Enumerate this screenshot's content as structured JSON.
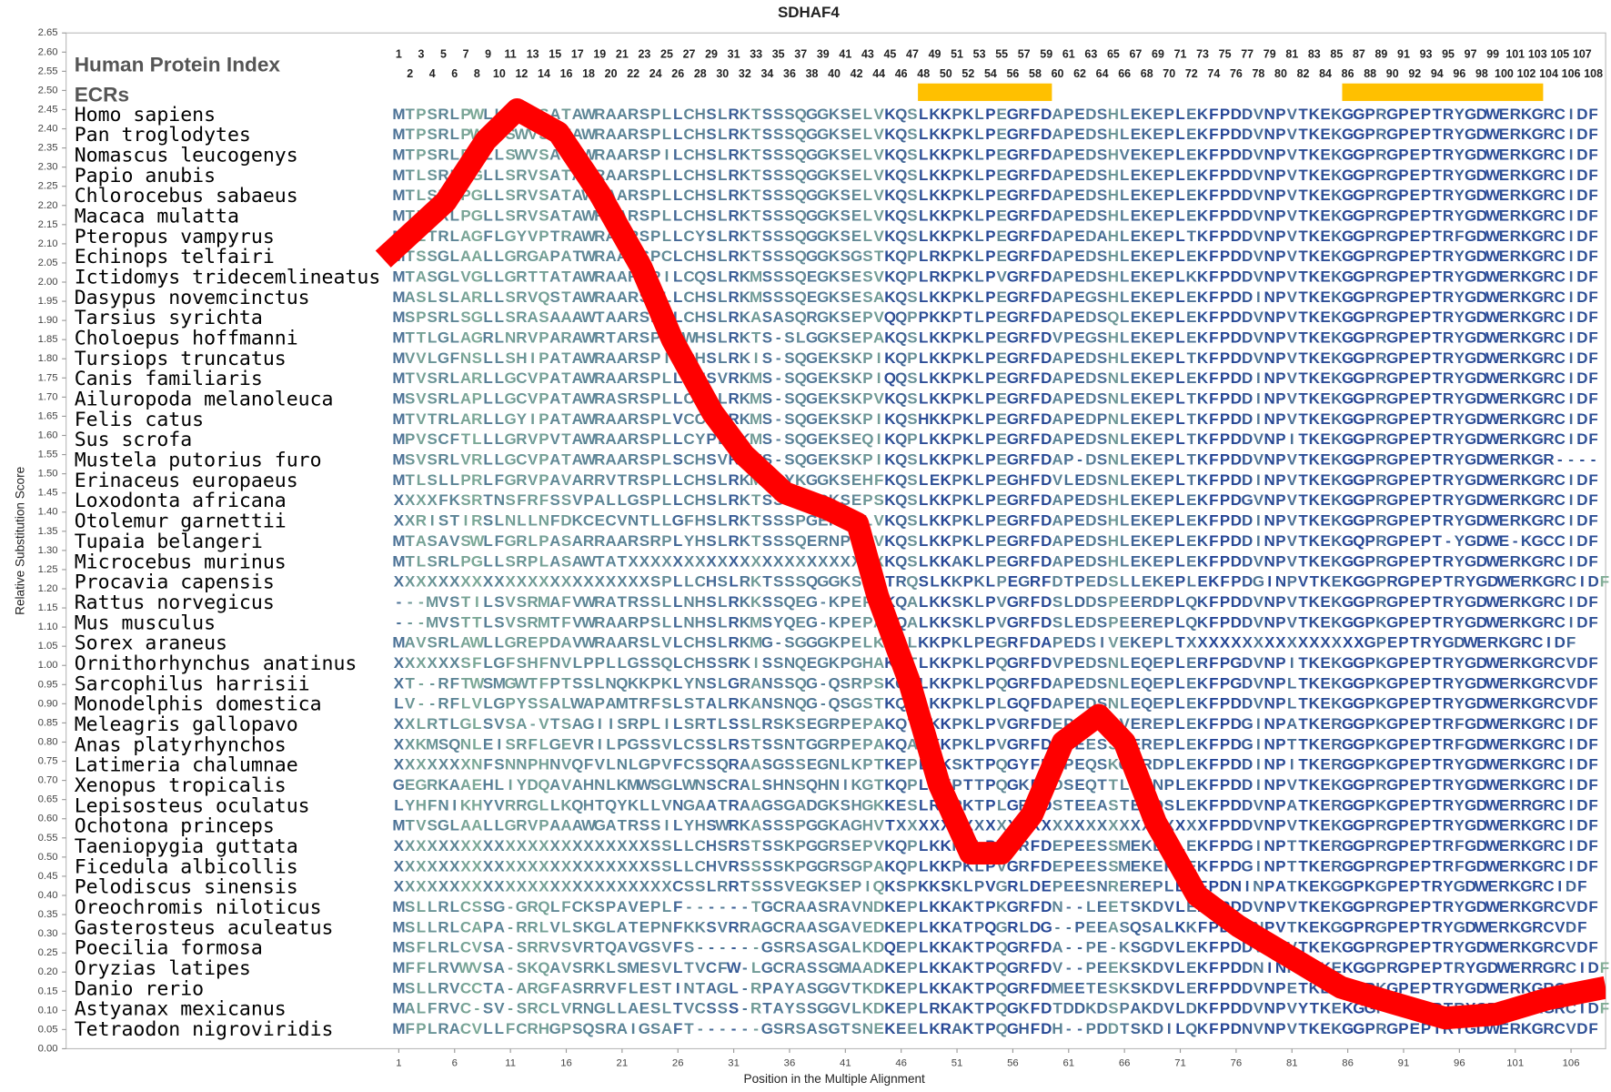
{
  "chart_data": {
    "type": "line",
    "title": "SDHAF4",
    "x_label": "Position in the Multiple Alignment",
    "y_label": "Relative Substitution Score",
    "xlim": [
      -28.8,
      109.1
    ],
    "ylim": [
      0,
      2.65
    ],
    "xticks": [
      1,
      6,
      11,
      16,
      21,
      26,
      31,
      36,
      41,
      46,
      51,
      56,
      61,
      66,
      71,
      76,
      81,
      86,
      91,
      96,
      101,
      106
    ],
    "yticks": [
      {
        "value": 0,
        "label": "0.00"
      },
      {
        "value": 0.05,
        "label": "0.05"
      },
      {
        "value": 0.1,
        "label": "0.10"
      },
      {
        "value": 0.15,
        "label": "0.15"
      },
      {
        "value": 0.2,
        "label": "0.20"
      },
      {
        "value": 0.25,
        "label": "0.25"
      },
      {
        "value": 0.3,
        "label": "0.30"
      },
      {
        "value": 0.35,
        "label": "0.35"
      },
      {
        "value": 0.4,
        "label": "0.40"
      },
      {
        "value": 0.45,
        "label": "0.45"
      },
      {
        "value": 0.5,
        "label": "0.50"
      },
      {
        "value": 0.55,
        "label": "0.55"
      },
      {
        "value": 0.6,
        "label": "0.60"
      },
      {
        "value": 0.65,
        "label": "0.65"
      },
      {
        "value": 0.7,
        "label": "0.70"
      },
      {
        "value": 0.75,
        "label": "0.75"
      },
      {
        "value": 0.8,
        "label": "0.80"
      },
      {
        "value": 0.85,
        "label": "0.85"
      },
      {
        "value": 0.9,
        "label": "0.90"
      },
      {
        "value": 0.95,
        "label": "0.95"
      },
      {
        "value": 1,
        "label": "1.00"
      },
      {
        "value": 1.05,
        "label": "1.05"
      },
      {
        "value": 1.1,
        "label": "1.10"
      },
      {
        "value": 1.15,
        "label": "1.15"
      },
      {
        "value": 1.2,
        "label": "1.20"
      },
      {
        "value": 1.25,
        "label": "1.25"
      },
      {
        "value": 1.3,
        "label": "1.30"
      },
      {
        "value": 1.35,
        "label": "1.35"
      },
      {
        "value": 1.4,
        "label": "1.40"
      },
      {
        "value": 1.45,
        "label": "1.45"
      },
      {
        "value": 1.5,
        "label": "1.50"
      },
      {
        "value": 1.55,
        "label": "1.55"
      },
      {
        "value": 1.6,
        "label": "1.60"
      },
      {
        "value": 1.65,
        "label": "1.65"
      },
      {
        "value": 1.7,
        "label": "1.70"
      },
      {
        "value": 1.75,
        "label": "1.75"
      },
      {
        "value": 1.8,
        "label": "1.80"
      },
      {
        "value": 1.85,
        "label": "1.85"
      },
      {
        "value": 1.9,
        "label": "1.90"
      },
      {
        "value": 1.95,
        "label": "1.95"
      },
      {
        "value": 2,
        "label": "2.00"
      },
      {
        "value": 2.05,
        "label": "2.05"
      },
      {
        "value": 2.1,
        "label": "2.10"
      },
      {
        "value": 2.15,
        "label": "2.15"
      },
      {
        "value": 2.2,
        "label": "2.20"
      },
      {
        "value": 2.25,
        "label": "2.25"
      },
      {
        "value": 2.3,
        "label": "2.30"
      },
      {
        "value": 2.35,
        "label": "2.35"
      },
      {
        "value": 2.4,
        "label": "2.40"
      },
      {
        "value": 2.45,
        "label": "2.45"
      },
      {
        "value": 2.5,
        "label": "2.50"
      },
      {
        "value": 2.55,
        "label": "2.55"
      },
      {
        "value": 2.6,
        "label": "2.60"
      },
      {
        "value": 2.65,
        "label": "2.65"
      }
    ],
    "series": [
      {
        "color": "#ff0000",
        "x": [
          -0.4,
          5.2,
          8.8,
          11.6,
          15.3,
          19,
          22.7,
          25.5,
          29.1,
          31.9,
          35.6,
          39.3,
          42.1,
          43.9,
          46.7,
          49.4,
          52.2,
          55,
          57.7,
          60.5,
          63.7,
          66,
          68.8,
          72.5,
          76.2,
          80.8,
          85.4,
          90,
          94.7,
          99.3,
          103.9,
          109.1
        ],
        "values": [
          2.06,
          2.21,
          2.37,
          2.45,
          2.39,
          2.23,
          2.04,
          1.85,
          1.66,
          1.55,
          1.45,
          1.41,
          1.37,
          1.18,
          0.96,
          0.69,
          0.51,
          0.51,
          0.61,
          0.8,
          0.87,
          0.8,
          0.59,
          0.4,
          0.32,
          0.24,
          0.16,
          0.12,
          0.08,
          0.09,
          0.13,
          0.16
        ]
      }
    ]
  },
  "alignment": {
    "index_title": "Human Protein Index",
    "ecrs_title": "ECRs",
    "index_odd": [
      1,
      3,
      5,
      7,
      9,
      11,
      13,
      15,
      17,
      19,
      21,
      23,
      25,
      27,
      29,
      31,
      33,
      35,
      37,
      39,
      41,
      43,
      45,
      47,
      49,
      51,
      53,
      55,
      57,
      59,
      61,
      63,
      65,
      67,
      69,
      71,
      73,
      75,
      77,
      79,
      81,
      83,
      85,
      87,
      89,
      91,
      93,
      95,
      97,
      99,
      101,
      103,
      105,
      107
    ],
    "index_even": [
      2,
      4,
      6,
      8,
      10,
      12,
      14,
      16,
      18,
      20,
      22,
      24,
      26,
      28,
      30,
      32,
      34,
      36,
      38,
      40,
      42,
      44,
      46,
      48,
      50,
      52,
      54,
      56,
      58,
      60,
      62,
      64,
      66,
      68,
      70,
      72,
      74,
      76,
      78,
      80,
      82,
      84,
      86,
      88,
      90,
      92,
      94,
      96,
      98,
      100,
      102,
      104,
      106,
      108
    ],
    "ecrs": [
      [
        48,
        59
      ],
      [
        86,
        103
      ]
    ],
    "ecr_color": "#ffc000",
    "species": [
      {
        "name": "Homo sapiens",
        "sequence": "MTPSRLPWLLSWVSATAWRAARSPLLCHSLRKTSSSQGGKSELVKQSLKKPKLPEGRFDAPEDSHLEKEPLEKFPDDVNPVTKEKGGPRGPEPTRYGDWERKGRCIDF"
      },
      {
        "name": "Pan troglodytes",
        "sequence": "MTPSRLPWLLSWVSATAWRAARSPLLCHSLRKTSSSQGGKSELVKQSLKKPKLPEGRFDAPEDSHLEKEPLEKFPDDVNPVTKEKGGPRGPEPTRYGDWERKGRCIDF"
      },
      {
        "name": "Nomascus leucogenys",
        "sequence": "MTPSRLPWLLSWVSATAWRAARSPILCHSLRKTSSSQGGKSELVKQSLKKPKLPEGRFDAPEDSHVEKEPLEKFPDDVNPVTKEKGGPRGPEPTRYGDWERKGRCIDF"
      },
      {
        "name": "Papio anubis",
        "sequence": "MTLSRLPGLLSRVSATAWRAARSPLLCHSLRKTSSSQGGKSELVKQSLKKPKLPEGRFDAPEDSHLEKEPLEKFPDDVNPVTKEKGGPRGPEPTRYGDWERKGRCIDF"
      },
      {
        "name": "Chlorocebus sabaeus",
        "sequence": "MTLSRLPGLLSRVSATAWRAARSPLLCHSLRKTSSSQGGKSELVKQSLKKPKLPEGRFDAPEDSHLEKEPLEKFPDDVNPVTKEKGGPRGPEPTRYGDWERKGRCIDF"
      },
      {
        "name": "Macaca mulatta",
        "sequence": "MTLSRLPGLLSRVSATAWRAARSPLLCHSLRKTSSSQGGKSELVKQSLKKPKLPEGRFDAPEDSHLEKEPLEKFPDDVNPVTKEKGGPRGPEPTRYGDWERKGRCIDF"
      },
      {
        "name": "Pteropus vampyrus",
        "sequence": "MTLTRLAGFLGYVPTRAWRAARSPLLCYSLRKTSSSQGGKSELVKQSLKKPKLPEGRFDAPEDAHLEKEPLTKFPDDVNPVTKEKGGPRGPEPTRFGDWERKGRCIDF"
      },
      {
        "name": "Echinops telfairi",
        "sequence": "MTSSGLAALLGRGAPATWRAARSPCLCHSLRKTSSSQGGKSGSTKQPLRKPKLPEGRFDAPEDSHLEKEPLEKFPDDVNPVTKEKGGPRGPEPTRYGDWERKGRCIDF"
      },
      {
        "name": "Ictidomys tridecemlineatus",
        "sequence": "MTASGLVGLLGRTTATAWRAARSPILCQSLRKMSSSQEGKSESVKQPLRKPKLPVGRFDAPEDSHLEKEPLKKFPDDVNPVTKEKGGPRGPEPTRYGDWERKGRCIDF"
      },
      {
        "name": "Dasypus novemcinctus",
        "sequence": "MASLSLARLLSRVQSTAWRAARSPLLCHSLRKMSSSQEGKSESAKQSLKKPKLPEGRFDAPEGSHLEKEPLEKFPDDINPVTKEKGGPRGPEPTRYGDWERKGRCIDF"
      },
      {
        "name": "Tarsius syrichta",
        "sequence": "MSPSRLSGLLSRASAAAWTAARSPLLCHSLRKASASQRGKSEPVQQPPKKPTLPEGRFDAPEDSQLEKEPLEKFPDDVNPVTKEKGGPRGPEPTRYGDWERKGRCIDF"
      },
      {
        "name": "Choloepus hoffmanni",
        "sequence": "MTTLGLAGRLNRVPARAWRTARSPLLWHSLRKTS-SLGGKSEPAKQSLKKPKLPEGRFDVPEGSHLEKEPLEKFPDDVNPVTKEKGGPRGPEPTRYGDWERKGRCIDF"
      },
      {
        "name": "Tursiops truncatus",
        "sequence": "MVVLGFNSLLSHIPATAWRAARSPILCHSLRKIS-SQGEKSKPIKQPLKKPKLPEGRFDAPEDSHLEKEPLTKFPDDVNPVTKEKGGPRGPEPTRYGDWERKGRCIDF"
      },
      {
        "name": "Canis familiaris",
        "sequence": "MTVSRLARLLGCVPATAWRAARSPLLCHSVRKMS-SQGEKSKPIQQSLKKPKLPEGRFDAPEDSNLEKEPLEKFPDDINPVTKEKGGPRGPEPTRYGDWERKGRCIDF"
      },
      {
        "name": "Ailuropoda melanoleuca",
        "sequence": "MSVSRLAPLLGCVPATAWRASRSPLLCHSLRKMS-SQGEKSKPVKQSLKKPKLPEGRFDAPEDSNLEKEPLTKFPDDINPVTKEKGGPRGPEPTRYGDWERKGRCIDF"
      },
      {
        "name": "Felis catus",
        "sequence": "MTVTRLARLLGYIPATAWRAARSPLVCCSVRKMS-SQGEKSKPIKQSHKKPKLPEGRFDAPEDPNLEKEPLTKFPDDINPVTKEKGGPRGPEPTRYGDWERKGRCIDF"
      },
      {
        "name": "Sus scrofa",
        "sequence": "MPVSCFTLLLGRVPVTAWRAARSPLLCYPLRKMS-SQGEKSEQIKQPLKKPKLPEGRFDAPEDSNLEKEPLTKFPDDVNPITKEKGGPRGPEPTRYGDWERKGRCIDF"
      },
      {
        "name": "Mustela putorius furo",
        "sequence": "MSVSRLVRLLGCVPATAWRAARSPLSCHSVRKMS-SQGEKSKPIKQSLKKPKLPEGRFDAP-DSNLEKEPLTKFPDDVNPVTKEKGGPRGPEPTRYGDWERKGR----"
      },
      {
        "name": "Erinaceus europaeus",
        "sequence": "MTLSLLPRLFGRVPAVARRVTRSPLLCHSLRKMN-YKGGKSEHFKQSLEKPKLPEGHFDVLEDSNLEKEPLTKFPDDINPVTKEKGGPRGPEPTRYGDWERKGRCIDF"
      },
      {
        "name": "Loxodonta africana",
        "sequence": "XXXXFKSRTNSFRFSSVPALLGSPLLCHSLRKTSSSQGGKSEPSKQSLKKPKLPEGRFDAPEDSHLEKEPLEKFPDGVNPVTKEKGGPRGPEPTRYGDWERKGRCIDF"
      },
      {
        "name": "Otolemur garnettii",
        "sequence": "XXRISTIRSLNLLNFDKCECVNTLLGFHSLRKTSSSPGEKSELVKQSLKKPKLPEGRFDAPEDSHLEKEPLEKFPDDINPVTKEKGGPRGPEPTRYGDWERKGRCIDF"
      },
      {
        "name": "Tupaia belangeri",
        "sequence": "MTASAVSWLFGRLPASARRAARSRPLYHSLRKTSSSQERNPEPVKQSLKKPKLPEGRFDAPEDSHLEKEPLEKFPDDINPVTKEKGQPRGPEPT-YGDWE-KGCCIDF"
      },
      {
        "name": "Microcebus murinus",
        "sequence": "MTLSRLPGLLSRPLASAWTATXXXXXXXXXXXXXXXXXXXXXXXKQSLKKAKLPEGRFDAPEDSHLEKEPLEKFPDDVNPVTKEKGGPRGPEPTRYGDWERKGRCIDF"
      },
      {
        "name": "Procavia capensis",
        "sequence": "XXXXXXXXXXXXXXXXXXXXXXXSPLLCHSLRKTSSSQGGKSEPTRQSLKKPKLPEGRFDTPEDSLLEKEPLEKFPDGINPVTKEKGGPRGPEPTRYGDWERKGRCIDF"
      },
      {
        "name": "Rattus norvegicus",
        "sequence": "---MVSTILSVSRMAFVWRATRSSLLNHSLRKKSSQEG-KPEPSKQALKKSKLPVGRFDSLDDSPEERDPLQKFPDDVNPVTKEKGGPRGPEPTRYGDWERKGRCIDF"
      },
      {
        "name": "Mus musculus",
        "sequence": "---MVSTTLSVSRMTFVWRAARPSLLNHSLRKMSYQEG-KPEPAKQALKKSKLPVGRFDSLEDSPEEREPLQKFPDDVNPVTKEKGGPKGPEPTRYGDWERKGRCIDF"
      },
      {
        "name": "Sorex araneus",
        "sequence": "MAVSRLAWLLGREPDAVWRAARSLVLCHSLRKMG-SGGGKPELKQSLKKPKLPEGRFDAPEDSIVEKEPLTXXXXXXXXXXXXXXXXGPEPTRYGDWERKGRCIDF"
      },
      {
        "name": "Ornithorhynchus anatinus",
        "sequence": "XXXXXXSFLGFSHFNVLPPLLGSSQLCHSSRKISSNQEGKPGHAKQTLKKPKLPQGRFDVPEDSNLEQEPLERFPGDVNPITKEKGGPKGPEPTRYGDWERKGRCVDF"
      },
      {
        "name": "Sarcophilus harrisii",
        "sequence": "XT--RFTWSMGWTFPTSSLNQKKPKLYNSLGRANSSQG-QSRPSKQELKKPKLPQGRFDAPEDSNLEQEPLEKFPGDVNPLTKEKGGPKGPEPTRYGDWERKGRCVDF"
      },
      {
        "name": "Monodelphis domestica",
        "sequence": "LV--RFLVLGPYSSALWAPAMTRFSLSTALRKANSNQG-QSGSTKQALKKPKLPLGQFDAPEDSNLEQEPLEKFPDDVNPLTKEKGGPKGPEPTRYGDWERKGRCVDF"
      },
      {
        "name": "Meleagris gallopavo",
        "sequence": "XXLRTLGLSVSA-VTSAGIISRPLILSRTLSSLRSKSEGRPEPAKQTLKKPKLPVGRFDEPEESSVEREPLEKFPDGINPATKERGGPKGPEPTRFGDWERKGRCIDF"
      },
      {
        "name": "Anas platyrhynchos",
        "sequence": "XXKMSQNLEISRFLGEVRILPGSSVLCSSLRSTSSNTGGRPEPAKQALKKPKLPVGRFDEPEESSIEREPLEKFPDGINPTTKERGGPKGPEPTRFGDWERKGRCIDF"
      },
      {
        "name": "Latimeria chalumnae",
        "sequence": "XXXXXXXNFSNNPHNVQFVLNLGPVFCSSQRAASGSSEGNLKPTKEPLKKSKTPQGYFDDPEQSKQSRDPLEKFPDDINPITKERGGPKGPEPTRYGDWERKGRCIDF"
      },
      {
        "name": "Xenopus tropicalis",
        "sequence": "GEGRKAAEHLIYDQAVAHNLKMWSGLWNSCRALSHNSQHNIKGTKQPLKKPTTPQGKFDDSEQTTLEKNPLEKFPDDINPVTKEKGGPRGPEPTRYGDWERKGRCIDF"
      },
      {
        "name": "Lepisosteus oculatus",
        "sequence": "LYHFNIKHYVRRGLLKQHTQYKLLVNGAATRAAGSGADGKSHGKKESLRKPKTPLGRFDSTEEASTEKDSLEKFPDDVNPATKERGGPKGPEPTRYGDWERRGRCIDF"
      },
      {
        "name": "Ochotona princeps",
        "sequence": "MTVSGLAALLGRVPAAAWGATRSSILYHSWRKASSSPGGKAGHVTXXXXXXXXXXXXXXXXXXXXXXXXXXXXFPDDVNPVTKEKGGPRGPEPTRYGDWERKGRCIDF"
      },
      {
        "name": "Taeniopygia guttata",
        "sequence": "XXXXXXXXXXXXXXXXXXXXXXXSSLLCHSRSTSSKPGGRSEPVKQPLKKPKLPVGRFDEPEESSMEKEPLEKFPDGINPTTKERGGPRGPEPTRFGDWERKGRCIDF"
      },
      {
        "name": "Ficedula albicollis",
        "sequence": "XXXXXXXXXXXXXXXXXXXXXXXSSLLCHVRSSSSKPGGRSGPAKQPLKKPKLPVGRFDEPEESSMEKEPLEKFPDGINPTTKERGGPRGPEPTRFGDWERKGRCIDF"
      },
      {
        "name": "Pelodiscus sinensis",
        "sequence": "XXXXXXXXXXXXXXXXXXXXXXXXXCSSLRRTSSSVEGKSEPIQKSPKKSKLPVGRLDEPEESNREREPLEKFPDNINPATKEKGGPKGPEPTRYGDWERKGRCIDF"
      },
      {
        "name": "Oreochromis niloticus",
        "sequence": "MSLLRLCSSG-GRQLFCKSPAVEPLF------TGCRAASRAVNDKEPLKKAKTPKGRFDN--LEETSKDVLEKFPDDVNPVTKEKGGPRGPEPTRYGDWERKGRCVDF"
      },
      {
        "name": "Gasterosteus aculeatus",
        "sequence": "MSLLRLCAPA-RRLVLSKGLATEPNFKKSVRRAGCRAASGAVEDKEPLKKATPQGRLDG--PEEASQSALKKFPDDVNPVTKEKGGPRGPEPTRYGDWERKGRCVDF"
      },
      {
        "name": "Poecilia formosa",
        "sequence": "MSFLRLCVSA-SRRVSVRTQAVGSVFS------GSRSASGALKDQEPLKKAKTPQGRFDA--PE-KSGDVLEKFPDDVNRVTKEKGGPRGPEPTRYGDWERKGRCVDF"
      },
      {
        "name": "Oryzias latipes",
        "sequence": "MFFLRVWVSA-SKQAVSRKLSMESVLTVCFW-LGCRASSGMAADKEPLKKAKTPQGRFDV--PEEKSKDVLEKFPDDNINPVTKEKGGPRGPEPTRYGDWERRGRCIDF"
      },
      {
        "name": "Danio rerio",
        "sequence": "MSLLRVCCTA-ARGFASRRVFLESTINTAGL-RPAYASGGVTKDKEPLKKAKTPQGRFDMEETESKSKDVLERFPDDVNPETKERGGPKGPEPTRYGDWERKGRCIDF"
      },
      {
        "name": "Astyanax mexicanus",
        "sequence": "MALFRVC-SV-SRCLVRNGLLAESLTVCSSS-RTAYSSGGVLKDKEPLRKAKTPQGKFDTDDKDSPAKDVLDKFPDDVNPVYTKEKGGPRGPEPTRYGDWERKGRCIDF"
      },
      {
        "name": "Tetraodon nigroviridis",
        "sequence": "MFPLRACVLLFCRHGPSQSRAIGSAFT------GSRSASGTSNEKEELKRAKTPQGHFDH--PDDTSKDILQKFPDNVNPVTKEKGGPRGPEPTRYGDWERKGRCVDF"
      }
    ]
  }
}
